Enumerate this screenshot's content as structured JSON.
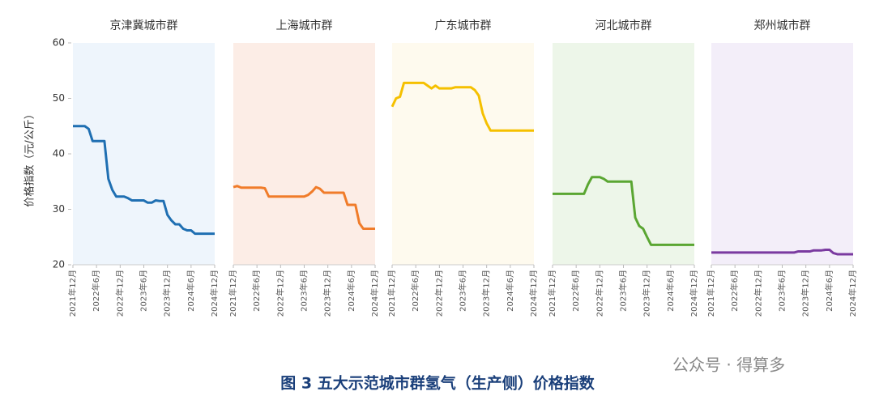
{
  "chart_data": [
    {
      "type": "line",
      "title": "京津冀城市群",
      "y_label": "价格指数（元/公斤）",
      "ylim": [
        20,
        60
      ],
      "yticks": [
        20,
        30,
        40,
        50,
        60
      ],
      "color": "#1f6fb2",
      "background": "#eef5fc",
      "categories": [
        "2021年12月",
        null,
        null,
        null,
        null,
        null,
        "2022年6月",
        null,
        null,
        null,
        null,
        null,
        "2022年12月",
        null,
        null,
        null,
        null,
        null,
        "2023年6月",
        null,
        null,
        null,
        null,
        null,
        "2023年12月",
        null,
        null,
        null,
        null,
        null,
        "2024年6月",
        null,
        null,
        null,
        null,
        null,
        "2024年12月"
      ],
      "values": [
        45,
        45,
        45,
        45,
        44.5,
        42.3,
        42.3,
        42.3,
        42.3,
        35.5,
        33.5,
        32.3,
        32.3,
        32.3,
        32,
        31.6,
        31.6,
        31.6,
        31.6,
        31.2,
        31.2,
        31.6,
        31.5,
        31.5,
        29,
        28,
        27.3,
        27.3,
        26.5,
        26.2,
        26.2,
        25.6,
        25.6,
        25.6,
        25.6,
        25.6,
        25.6
      ]
    },
    {
      "type": "line",
      "title": "上海城市群",
      "color": "#f07c2a",
      "background": "#fcede6",
      "categories": [
        "2021年12月",
        null,
        null,
        null,
        null,
        null,
        "2022年6月",
        null,
        null,
        null,
        null,
        null,
        "2022年12月",
        null,
        null,
        null,
        null,
        null,
        "2023年6月",
        null,
        null,
        null,
        null,
        null,
        "2023年12月",
        null,
        null,
        null,
        null,
        null,
        "2024年6月",
        null,
        null,
        null,
        null,
        null,
        "2024年12月"
      ],
      "values": [
        34,
        34.2,
        33.9,
        33.9,
        33.9,
        33.9,
        33.9,
        33.9,
        33.8,
        32.3,
        32.3,
        32.3,
        32.3,
        32.3,
        32.3,
        32.3,
        32.3,
        32.3,
        32.3,
        32.6,
        33.2,
        34,
        33.7,
        33,
        33,
        33,
        33,
        33,
        33,
        30.8,
        30.8,
        30.8,
        27.5,
        26.5,
        26.5,
        26.5,
        26.5
      ]
    },
    {
      "type": "line",
      "title": "广东城市群",
      "color": "#f5c000",
      "background": "#fefaee",
      "categories": [
        "2021年12月",
        null,
        null,
        null,
        null,
        null,
        "2022年6月",
        null,
        null,
        null,
        null,
        null,
        "2022年12月",
        null,
        null,
        null,
        null,
        null,
        "2023年6月",
        null,
        null,
        null,
        null,
        null,
        "2023年12月",
        null,
        null,
        null,
        null,
        null,
        "2024年6月",
        null,
        null,
        null,
        null,
        null,
        "2024年12月"
      ],
      "values": [
        48.5,
        50,
        50.3,
        52.8,
        52.8,
        52.8,
        52.8,
        52.8,
        52.8,
        52.3,
        51.8,
        52.3,
        51.8,
        51.8,
        51.8,
        51.8,
        52,
        52,
        52,
        52,
        52,
        51.5,
        50.5,
        47.3,
        45.5,
        44.2,
        44.2,
        44.2,
        44.2,
        44.2,
        44.2,
        44.2,
        44.2,
        44.2,
        44.2,
        44.2,
        44.2
      ]
    },
    {
      "type": "line",
      "title": "河北城市群",
      "color": "#5aa632",
      "background": "#edf6e9",
      "categories": [
        "2021年12月",
        null,
        null,
        null,
        null,
        null,
        "2022年6月",
        null,
        null,
        null,
        null,
        null,
        "2022年12月",
        null,
        null,
        null,
        null,
        null,
        "2023年6月",
        null,
        null,
        null,
        null,
        null,
        "2023年12月",
        null,
        null,
        null,
        null,
        null,
        "2024年6月",
        null,
        null,
        null,
        null,
        null,
        "2024年12月"
      ],
      "values": [
        32.8,
        32.8,
        32.8,
        32.8,
        32.8,
        32.8,
        32.8,
        32.8,
        32.8,
        34.5,
        35.8,
        35.8,
        35.8,
        35.5,
        35,
        35,
        35,
        35,
        35,
        35,
        35,
        28.5,
        27,
        26.5,
        25,
        23.6,
        23.6,
        23.6,
        23.6,
        23.6,
        23.6,
        23.6,
        23.6,
        23.6,
        23.6,
        23.6,
        23.6
      ]
    },
    {
      "type": "line",
      "title": "郑州城市群",
      "color": "#7a3aa0",
      "background": "#f3eef9",
      "categories": [
        "2021年12月",
        null,
        null,
        null,
        null,
        null,
        "2022年6月",
        null,
        null,
        null,
        null,
        null,
        "2022年12月",
        null,
        null,
        null,
        null,
        null,
        "2023年6月",
        null,
        null,
        null,
        null,
        null,
        "2023年12月",
        null,
        null,
        null,
        null,
        null,
        "2024年6月",
        null,
        null,
        null,
        null,
        null,
        "2024年12月"
      ],
      "values": [
        22.2,
        22.2,
        22.2,
        22.2,
        22.2,
        22.2,
        22.2,
        22.2,
        22.2,
        22.2,
        22.2,
        22.2,
        22.2,
        22.2,
        22.2,
        22.2,
        22.2,
        22.2,
        22.2,
        22.2,
        22.2,
        22.2,
        22.4,
        22.4,
        22.4,
        22.4,
        22.6,
        22.6,
        22.6,
        22.7,
        22.7,
        22.1,
        21.9,
        21.9,
        21.9,
        21.9,
        21.9
      ]
    }
  ],
  "caption": "图 3 五大示范城市群氢气（生产侧）价格指数",
  "watermark": "公众号 · 得算多"
}
